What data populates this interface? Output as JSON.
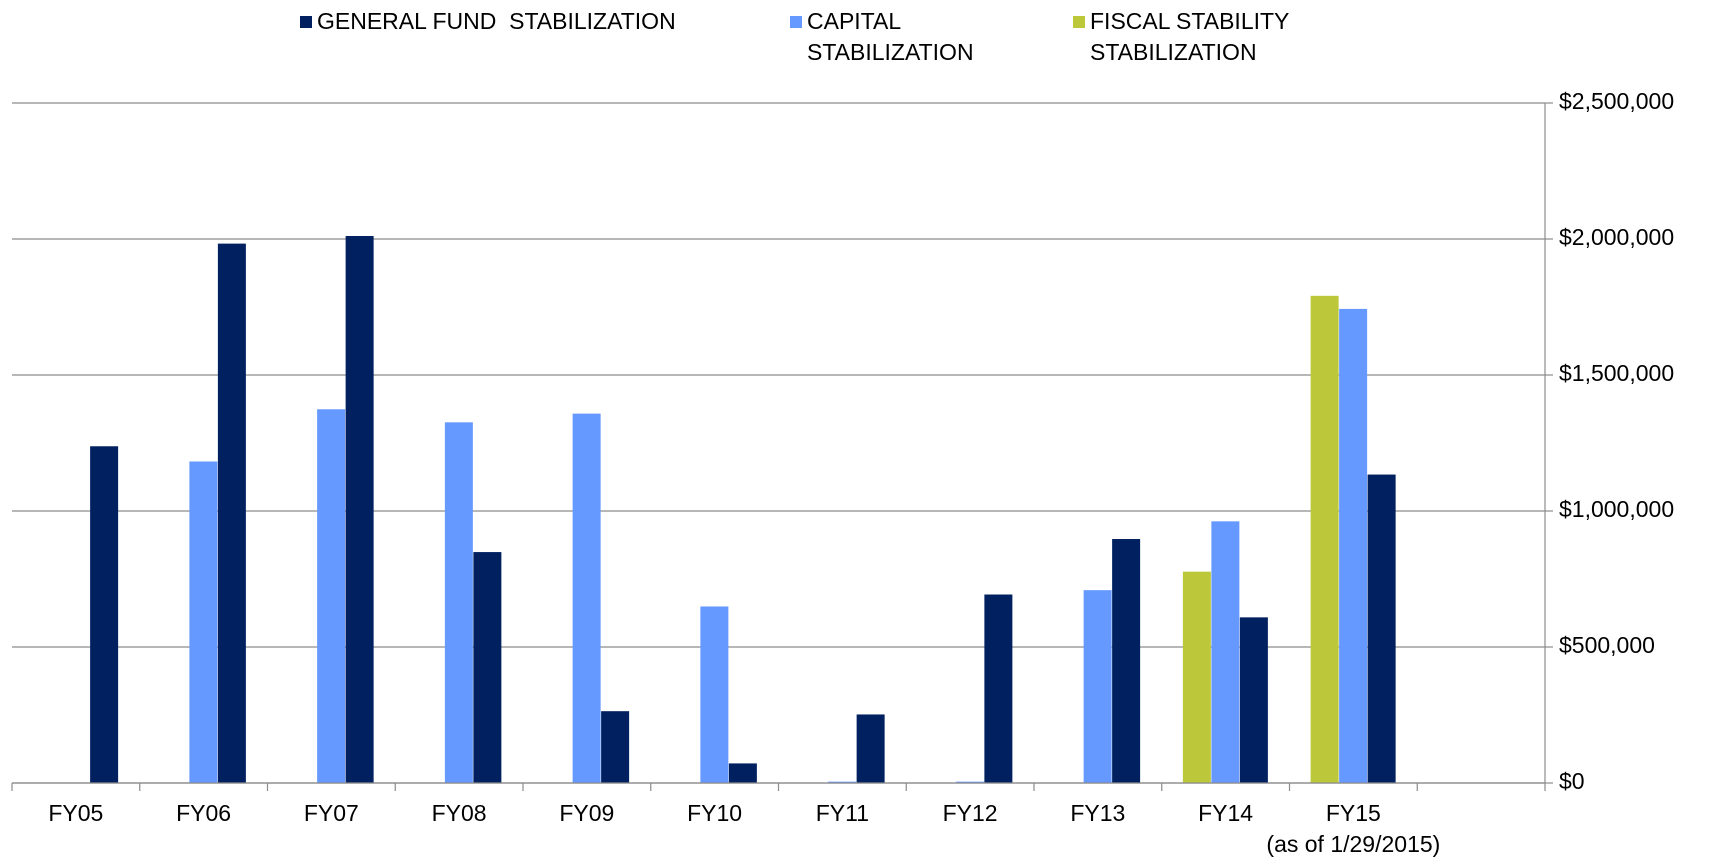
{
  "chart_data": {
    "type": "bar",
    "categories": [
      "FY05",
      "FY06",
      "FY07",
      "FY08",
      "FY09",
      "FY10",
      "FY11",
      "FY12",
      "FY13",
      "FY14",
      "FY15",
      null
    ],
    "annotations": [
      "(as of 1/29/2015)"
    ],
    "series": [
      {
        "name": "FISCAL STABILITY STABILIZATION",
        "color": "#bdc73a",
        "values": [
          null,
          null,
          null,
          null,
          null,
          null,
          null,
          null,
          null,
          777000,
          1791000,
          null
        ]
      },
      {
        "name": "CAPITAL STABILIZATION",
        "color": "#6699ff",
        "values": [
          null,
          1182000,
          1374000,
          1326000,
          1358000,
          649000,
          5000,
          5000,
          709000,
          962000,
          1743000,
          null
        ]
      },
      {
        "name": "GENERAL FUND  STABILIZATION",
        "color": "#002060",
        "values": [
          1238000,
          1983000,
          2011000,
          849000,
          264000,
          72000,
          252000,
          693000,
          897000,
          609000,
          1134000,
          null
        ]
      }
    ],
    "ylim": [
      0,
      2500000
    ],
    "yticks": [
      {
        "value": 0,
        "label": "$0"
      },
      {
        "value": 500000,
        "label": "$500,000"
      },
      {
        "value": 1000000,
        "label": "$1,000,000"
      },
      {
        "value": 1500000,
        "label": "$1,500,000"
      },
      {
        "value": 2000000,
        "label": "$2,000,000"
      },
      {
        "value": 2500000,
        "label": "$2,500,000"
      }
    ],
    "grid": true,
    "legend": "top"
  }
}
